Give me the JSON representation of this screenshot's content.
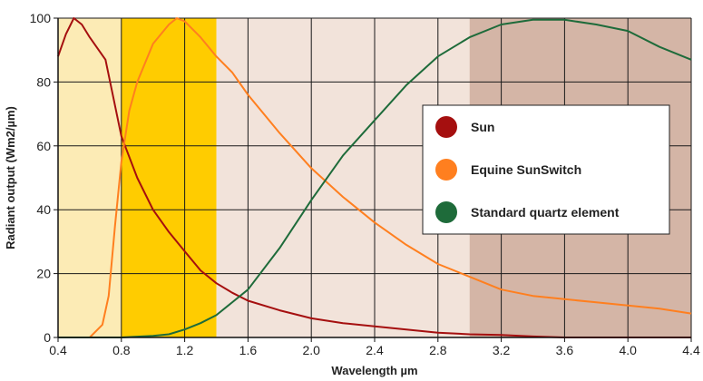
{
  "chart_data": {
    "type": "line",
    "xlabel": "Wavelength µm",
    "ylabel": "Radiant output (Wm2/µm)",
    "xlim": [
      0.4,
      4.4
    ],
    "ylim": [
      0,
      100
    ],
    "x_ticks": [
      0.4,
      0.8,
      1.2,
      1.6,
      2.0,
      2.4,
      2.8,
      3.2,
      3.6,
      4.0,
      4.4
    ],
    "x_tick_labels": [
      "0.4",
      "0.8",
      "1.2",
      "1.6",
      "2.0",
      "2.4",
      "2.8",
      "3.2",
      "3.6",
      "4.0",
      "4.4"
    ],
    "y_ticks": [
      0,
      20,
      40,
      60,
      80,
      100
    ],
    "y_tick_labels": [
      "0",
      "20",
      "40",
      "60",
      "80",
      "100"
    ],
    "grid": true,
    "legend_position": "right",
    "bands": [
      {
        "x0": 0.4,
        "x1": 0.8,
        "color": "#fcebb5"
      },
      {
        "x0": 0.8,
        "x1": 1.4,
        "color": "#ffcc00"
      },
      {
        "x0": 1.4,
        "x1": 3.0,
        "color": "#f2e3da"
      },
      {
        "x0": 3.0,
        "x1": 4.4,
        "color": "#d4b5a6"
      }
    ],
    "series": [
      {
        "name": "Sun",
        "color": "#a50f0f",
        "points": [
          [
            0.4,
            88
          ],
          [
            0.45,
            95
          ],
          [
            0.5,
            100
          ],
          [
            0.55,
            98
          ],
          [
            0.6,
            94
          ],
          [
            0.7,
            87
          ],
          [
            0.8,
            63
          ],
          [
            0.9,
            50
          ],
          [
            1.0,
            40
          ],
          [
            1.1,
            33
          ],
          [
            1.2,
            27
          ],
          [
            1.3,
            21
          ],
          [
            1.4,
            17
          ],
          [
            1.5,
            14
          ],
          [
            1.6,
            11.5
          ],
          [
            1.8,
            8.5
          ],
          [
            2.0,
            6
          ],
          [
            2.2,
            4.5
          ],
          [
            2.4,
            3.5
          ],
          [
            2.6,
            2.5
          ],
          [
            2.8,
            1.5
          ],
          [
            3.0,
            1
          ],
          [
            3.2,
            0.8
          ],
          [
            3.4,
            0.3
          ],
          [
            3.6,
            0
          ],
          [
            4.4,
            0
          ]
        ]
      },
      {
        "name": "Equine SunSwitch",
        "color": "#ff7f1f",
        "points": [
          [
            0.4,
            0
          ],
          [
            0.6,
            0
          ],
          [
            0.68,
            4
          ],
          [
            0.72,
            13
          ],
          [
            0.76,
            35
          ],
          [
            0.8,
            55
          ],
          [
            0.85,
            71
          ],
          [
            0.9,
            80
          ],
          [
            1.0,
            92
          ],
          [
            1.1,
            98
          ],
          [
            1.15,
            100
          ],
          [
            1.2,
            99
          ],
          [
            1.3,
            94
          ],
          [
            1.4,
            88
          ],
          [
            1.5,
            83
          ],
          [
            1.6,
            76
          ],
          [
            1.8,
            64
          ],
          [
            2.0,
            53
          ],
          [
            2.2,
            44
          ],
          [
            2.4,
            36
          ],
          [
            2.6,
            29
          ],
          [
            2.8,
            23
          ],
          [
            3.0,
            19
          ],
          [
            3.2,
            15
          ],
          [
            3.4,
            13
          ],
          [
            3.6,
            12
          ],
          [
            3.8,
            11
          ],
          [
            4.0,
            10
          ],
          [
            4.2,
            9
          ],
          [
            4.4,
            7.5
          ]
        ]
      },
      {
        "name": "Standard quartz element",
        "color": "#1e6b3a",
        "points": [
          [
            0.4,
            0
          ],
          [
            0.8,
            0
          ],
          [
            1.0,
            0.5
          ],
          [
            1.1,
            1
          ],
          [
            1.2,
            2.5
          ],
          [
            1.3,
            4.5
          ],
          [
            1.4,
            7
          ],
          [
            1.6,
            15
          ],
          [
            1.8,
            28
          ],
          [
            2.0,
            43
          ],
          [
            2.2,
            57
          ],
          [
            2.4,
            68
          ],
          [
            2.6,
            79
          ],
          [
            2.8,
            88
          ],
          [
            3.0,
            94
          ],
          [
            3.2,
            98
          ],
          [
            3.4,
            99.5
          ],
          [
            3.6,
            99.5
          ],
          [
            3.8,
            98
          ],
          [
            4.0,
            96
          ],
          [
            4.2,
            91
          ],
          [
            4.4,
            87
          ]
        ]
      }
    ]
  }
}
